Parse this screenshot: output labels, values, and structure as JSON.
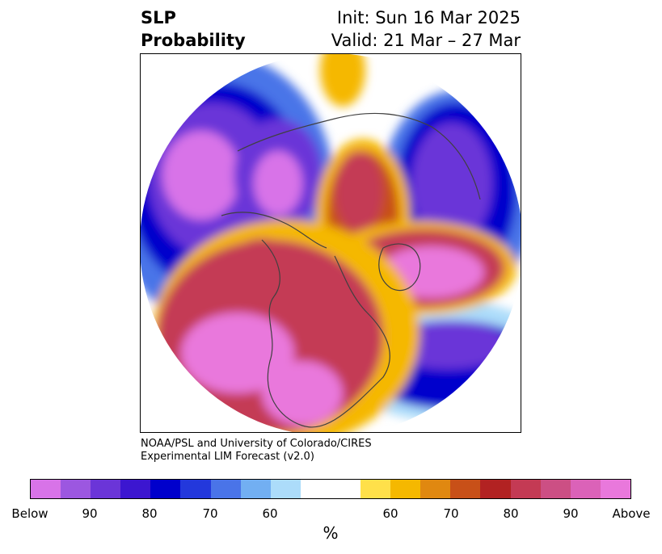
{
  "title": {
    "left_line1": "SLP",
    "left_line2": "Probability",
    "right_line1": "Init: Sun 16 Mar 2025",
    "right_line2": "Valid: 21 Mar – 27 Mar"
  },
  "credit": {
    "line1": "NOAA/PSL and University of Colorado/CIRES",
    "line2": "Experimental LIM Forecast (v2.0)"
  },
  "colorbar": {
    "unit": "%",
    "colors": [
      "#d873e8",
      "#9c57e0",
      "#6b35d8",
      "#3c16d0",
      "#0000cc",
      "#2338dc",
      "#4a74e8",
      "#72aff2",
      "#acdcfa",
      "#ffffff",
      "#ffffff",
      "#ffe04a",
      "#f5b800",
      "#e08810",
      "#c85018",
      "#b22222",
      "#c43a54",
      "#cc4f84",
      "#db62b8",
      "#e978dc"
    ],
    "tick_labels": [
      "Below",
      "90",
      "80",
      "70",
      "60",
      "60",
      "70",
      "80",
      "90",
      "Above"
    ]
  },
  "map": {
    "colors": {
      "strong_below": "#d873e8",
      "below_high": "#6b35d8",
      "below_mid": "#0000cc",
      "below_low": "#4a74e8",
      "below_faint": "#acdcfa",
      "above_faint": "#ffe04a",
      "above_low": "#f5b800",
      "above_mid": "#c85018",
      "above_high": "#c43a54",
      "strong_above": "#e978dc",
      "coast": "#404040"
    }
  }
}
